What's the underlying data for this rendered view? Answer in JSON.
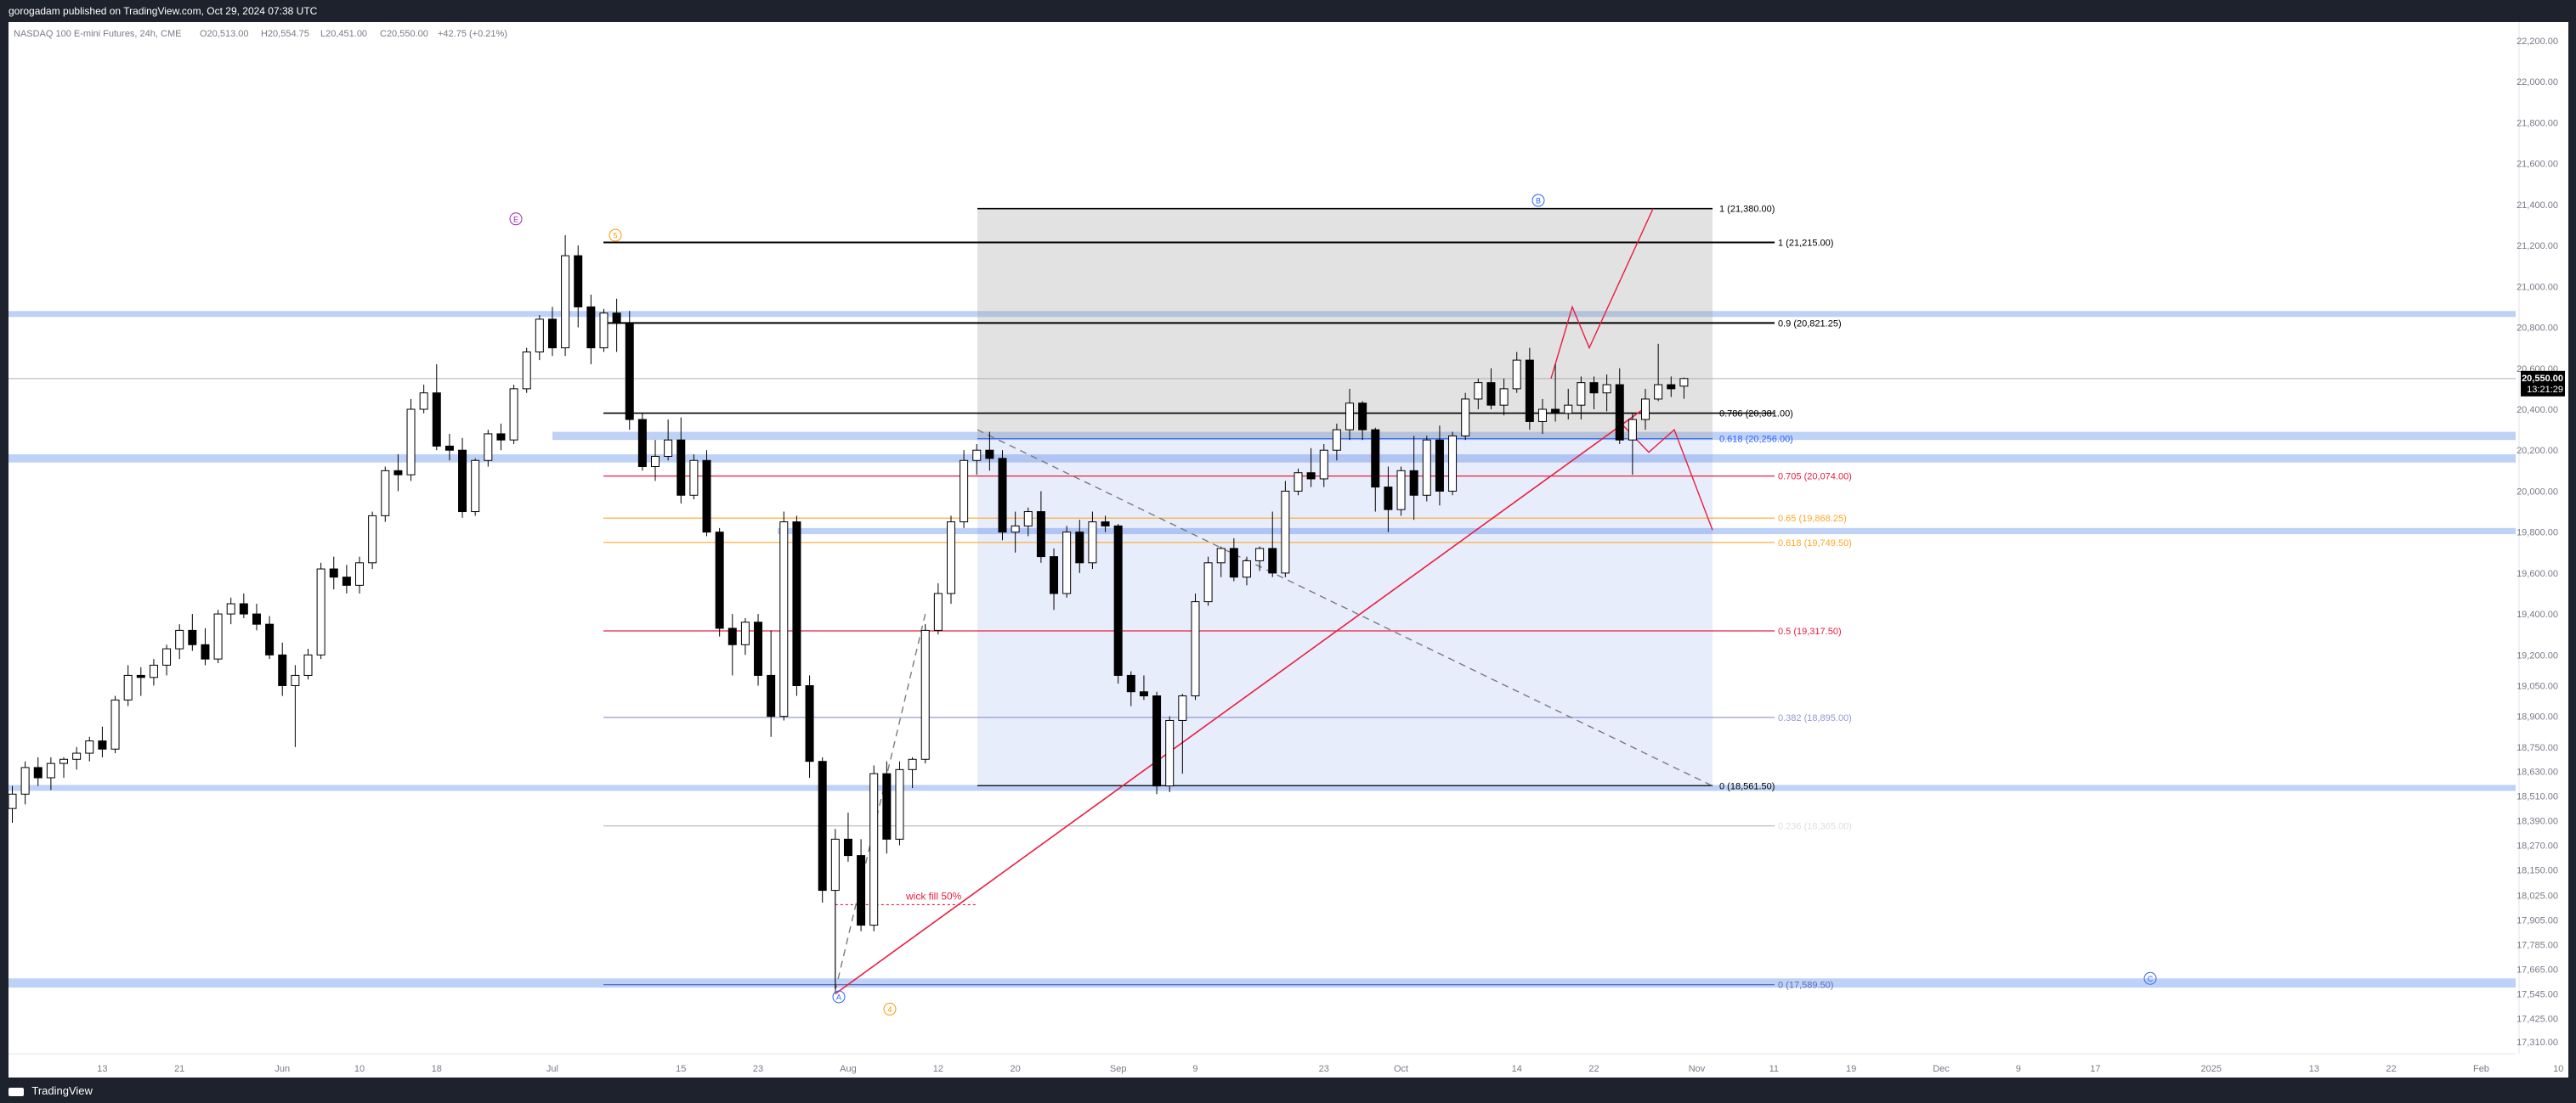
{
  "header": {
    "publish_line": "gorogadam published on TradingView.com, Oct 29, 2024 07:38 UTC"
  },
  "footer": {
    "brand": "TradingView"
  },
  "chart_data": {
    "type": "candlestick",
    "symbol_line": "NASDAQ 100 E-mini Futures, 24h, CME",
    "ohlc": {
      "o": "O20,513.00",
      "h": "H20,554.75",
      "l": "L20,451.00",
      "c": "C20,550.00",
      "chg": "+42.75 (+0.21%)"
    },
    "last_price": "20,550.00",
    "countdown": "13:21:29",
    "y_range": [
      17150,
      22300
    ],
    "price_ticks": [
      22200,
      22000,
      21800,
      21600,
      21400,
      21200,
      21000,
      20800,
      20600,
      20400,
      20200,
      20000,
      19800,
      19600,
      19400,
      19200,
      19050,
      18900,
      18750,
      18630,
      18510,
      18390,
      18270,
      18150,
      18025,
      17905,
      17785,
      17665,
      17545,
      17425,
      17310
    ],
    "price_tick_labels": [
      "22,200.00",
      "22,000.00",
      "21,800.00",
      "21,600.00",
      "21,400.00",
      "21,200.00",
      "21,000.00",
      "20,800.00",
      "20,600.00",
      "20,400.00",
      "20,200.00",
      "20,000.00",
      "19,800.00",
      "19,600.00",
      "19,400.00",
      "19,200.00",
      "19,050.00",
      "18,900.00",
      "18,750.00",
      "18,630.00",
      "18,510.00",
      "18,390.00",
      "18,270.00",
      "18,150.00",
      "18,025.00",
      "17,905.00",
      "17,785.00",
      "17,665.00",
      "17,545.00",
      "17,425.00",
      "17,310.00"
    ],
    "x_ticks": [
      {
        "label": "13",
        "i": 7
      },
      {
        "label": "21",
        "i": 13
      },
      {
        "label": "Jun",
        "i": 21
      },
      {
        "label": "10",
        "i": 27
      },
      {
        "label": "18",
        "i": 33
      },
      {
        "label": "Jul",
        "i": 42
      },
      {
        "label": "15",
        "i": 52
      },
      {
        "label": "23",
        "i": 58
      },
      {
        "label": "Aug",
        "i": 65
      },
      {
        "label": "12",
        "i": 72
      },
      {
        "label": "20",
        "i": 78
      },
      {
        "label": "Sep",
        "i": 86
      },
      {
        "label": "9",
        "i": 92
      },
      {
        "label": "23",
        "i": 102
      },
      {
        "label": "Oct",
        "i": 108
      },
      {
        "label": "14",
        "i": 117
      },
      {
        "label": "22",
        "i": 123
      },
      {
        "label": "Nov",
        "i": 131
      },
      {
        "label": "11",
        "i": 137
      },
      {
        "label": "19",
        "i": 143
      },
      {
        "label": "Dec",
        "i": 150
      },
      {
        "label": "9",
        "i": 156
      },
      {
        "label": "17",
        "i": 162
      },
      {
        "label": "2025",
        "i": 171
      },
      {
        "label": "13",
        "i": 179
      },
      {
        "label": "22",
        "i": 185
      },
      {
        "label": "Feb",
        "i": 192
      },
      {
        "label": "10",
        "i": 198
      }
    ],
    "candles": [
      [
        18450,
        18560,
        18380,
        18520
      ],
      [
        18520,
        18680,
        18470,
        18650
      ],
      [
        18650,
        18700,
        18560,
        18600
      ],
      [
        18600,
        18700,
        18540,
        18670
      ],
      [
        18670,
        18700,
        18600,
        18690
      ],
      [
        18690,
        18750,
        18640,
        18720
      ],
      [
        18720,
        18800,
        18680,
        18780
      ],
      [
        18780,
        18850,
        18700,
        18740
      ],
      [
        18740,
        19000,
        18720,
        18980
      ],
      [
        18980,
        19150,
        18950,
        19100
      ],
      [
        19100,
        19140,
        19000,
        19090
      ],
      [
        19090,
        19180,
        19050,
        19150
      ],
      [
        19150,
        19250,
        19100,
        19230
      ],
      [
        19230,
        19350,
        19180,
        19320
      ],
      [
        19320,
        19400,
        19220,
        19250
      ],
      [
        19250,
        19330,
        19150,
        19180
      ],
      [
        19180,
        19420,
        19160,
        19400
      ],
      [
        19400,
        19480,
        19350,
        19450
      ],
      [
        19450,
        19500,
        19380,
        19400
      ],
      [
        19400,
        19450,
        19320,
        19350
      ],
      [
        19350,
        19390,
        19180,
        19200
      ],
      [
        19200,
        19260,
        19000,
        19050
      ],
      [
        19050,
        19150,
        18750,
        19100
      ],
      [
        19100,
        19230,
        19080,
        19200
      ],
      [
        19200,
        19650,
        19180,
        19620
      ],
      [
        19620,
        19680,
        19520,
        19580
      ],
      [
        19580,
        19640,
        19500,
        19540
      ],
      [
        19540,
        19680,
        19500,
        19650
      ],
      [
        19650,
        19900,
        19620,
        19880
      ],
      [
        19880,
        20120,
        19850,
        20100
      ],
      [
        20100,
        20180,
        20000,
        20080
      ],
      [
        20080,
        20450,
        20050,
        20400
      ],
      [
        20400,
        20520,
        20380,
        20480
      ],
      [
        20480,
        20620,
        20200,
        20220
      ],
      [
        20220,
        20280,
        20150,
        20200
      ],
      [
        20200,
        20260,
        19870,
        19900
      ],
      [
        19900,
        20160,
        19880,
        20150
      ],
      [
        20150,
        20300,
        20120,
        20280
      ],
      [
        20280,
        20330,
        20200,
        20250
      ],
      [
        20250,
        20520,
        20230,
        20500
      ],
      [
        20500,
        20700,
        20480,
        20680
      ],
      [
        20680,
        20860,
        20640,
        20840
      ],
      [
        20840,
        20900,
        20660,
        20700
      ],
      [
        20700,
        21250,
        20660,
        21150
      ],
      [
        21150,
        21200,
        20800,
        20900
      ],
      [
        20900,
        20960,
        20620,
        20700
      ],
      [
        20700,
        20890,
        20680,
        20870
      ],
      [
        20870,
        20940,
        20680,
        20820
      ],
      [
        20820,
        20880,
        20300,
        20350
      ],
      [
        20350,
        20380,
        20100,
        20120
      ],
      [
        20120,
        20250,
        20050,
        20170
      ],
      [
        20170,
        20350,
        20150,
        20250
      ],
      [
        20250,
        20360,
        19940,
        19980
      ],
      [
        19980,
        20180,
        19960,
        20150
      ],
      [
        20150,
        20200,
        19780,
        19800
      ],
      [
        19800,
        19820,
        19290,
        19330
      ],
      [
        19330,
        19400,
        19100,
        19250
      ],
      [
        19250,
        19380,
        19200,
        19360
      ],
      [
        19360,
        19400,
        19050,
        19100
      ],
      [
        19100,
        19320,
        18800,
        18900
      ],
      [
        18900,
        19900,
        18880,
        19850
      ],
      [
        19850,
        19880,
        19000,
        19050
      ],
      [
        19050,
        19100,
        18600,
        18680
      ],
      [
        18680,
        18700,
        17990,
        18050
      ],
      [
        18050,
        18350,
        17570,
        18300
      ],
      [
        18300,
        18430,
        18190,
        18220
      ],
      [
        18220,
        18300,
        17850,
        17880
      ],
      [
        17880,
        18660,
        17850,
        18620
      ],
      [
        18620,
        18680,
        18230,
        18300
      ],
      [
        18300,
        18680,
        18270,
        18640
      ],
      [
        18640,
        18700,
        18550,
        18690
      ],
      [
        18690,
        19350,
        18670,
        19320
      ],
      [
        19320,
        19550,
        19300,
        19500
      ],
      [
        19500,
        19880,
        19450,
        19850
      ],
      [
        19850,
        20200,
        19820,
        20150
      ],
      [
        20150,
        20230,
        20080,
        20200
      ],
      [
        20200,
        20290,
        20100,
        20160
      ],
      [
        20160,
        20200,
        19760,
        19800
      ],
      [
        19800,
        19900,
        19700,
        19830
      ],
      [
        19830,
        19920,
        19780,
        19900
      ],
      [
        19900,
        20000,
        19650,
        19680
      ],
      [
        19680,
        19720,
        19420,
        19500
      ],
      [
        19500,
        19830,
        19480,
        19800
      ],
      [
        19800,
        19860,
        19600,
        19650
      ],
      [
        19650,
        19900,
        19620,
        19850
      ],
      [
        19850,
        19880,
        19800,
        19830
      ],
      [
        19830,
        19840,
        19060,
        19100
      ],
      [
        19100,
        19120,
        18950,
        19020
      ],
      [
        19020,
        19100,
        18980,
        19000
      ],
      [
        19000,
        19020,
        18520,
        18560
      ],
      [
        18560,
        18900,
        18530,
        18880
      ],
      [
        18880,
        19010,
        18620,
        19000
      ],
      [
        19000,
        19500,
        18980,
        19460
      ],
      [
        19460,
        19680,
        19440,
        19650
      ],
      [
        19650,
        19730,
        19580,
        19720
      ],
      [
        19720,
        19770,
        19560,
        19580
      ],
      [
        19580,
        19680,
        19540,
        19660
      ],
      [
        19660,
        19730,
        19610,
        19720
      ],
      [
        19720,
        19900,
        19580,
        19600
      ],
      [
        19600,
        20050,
        19580,
        20000
      ],
      [
        20000,
        20110,
        19980,
        20090
      ],
      [
        20090,
        20210,
        20020,
        20060
      ],
      [
        20060,
        20230,
        20020,
        20200
      ],
      [
        20200,
        20330,
        20150,
        20300
      ],
      [
        20300,
        20500,
        20250,
        20430
      ],
      [
        20430,
        20440,
        20250,
        20300
      ],
      [
        20300,
        20310,
        19900,
        20020
      ],
      [
        20020,
        20120,
        19800,
        19910
      ],
      [
        19910,
        20120,
        19880,
        20100
      ],
      [
        20100,
        20270,
        19860,
        19980
      ],
      [
        19980,
        20270,
        19950,
        20250
      ],
      [
        20250,
        20320,
        19930,
        20000
      ],
      [
        20000,
        20290,
        19980,
        20270
      ],
      [
        20270,
        20480,
        20250,
        20450
      ],
      [
        20450,
        20550,
        20400,
        20530
      ],
      [
        20530,
        20600,
        20400,
        20420
      ],
      [
        20420,
        20550,
        20370,
        20500
      ],
      [
        20500,
        20680,
        20480,
        20640
      ],
      [
        20640,
        20700,
        20300,
        20340
      ],
      [
        20340,
        20450,
        20280,
        20400
      ],
      [
        20400,
        20620,
        20340,
        20380
      ],
      [
        20380,
        20500,
        20350,
        20420
      ],
      [
        20420,
        20560,
        20350,
        20530
      ],
      [
        20530,
        20560,
        20400,
        20480
      ],
      [
        20480,
        20570,
        20390,
        20520
      ],
      [
        20520,
        20600,
        20230,
        20250
      ],
      [
        20250,
        20380,
        20080,
        20350
      ],
      [
        20350,
        20500,
        20300,
        20450
      ],
      [
        20450,
        20720,
        20440,
        20520
      ],
      [
        20520,
        20560,
        20460,
        20500
      ],
      [
        20513,
        20555,
        20451,
        20550
      ]
    ],
    "fib_grid_1": {
      "labels": [
        "1 (21,380.00)",
        "0.786 (20,381.00)",
        "0.618 (20,256.00)",
        "0 (18,561.50)"
      ],
      "values": [
        21380,
        20381,
        20256,
        18561.5
      ]
    },
    "fib_grid_2": {
      "labels": [
        "1 (21,215.00)",
        "0.9 (20,821.25)",
        "0.705 (20,074.00)",
        "0.65 (19,868.25)",
        "0.618 (19,749.50)",
        "0.5 (19,317.50)",
        "0.382 (18,895.00)",
        "0.236 (18,365.00)",
        "0 (17,589.50)"
      ],
      "values": [
        21215,
        20821.25,
        20074,
        19868.25,
        19749.5,
        19317.5,
        18895,
        18365,
        17589.5
      ]
    },
    "wave_labels": [
      "E",
      "5",
      "B",
      "A",
      "4",
      "C"
    ],
    "annotation": "wick fill 50%",
    "colors": {
      "up_fill": "#ffffff",
      "down_fill": "#000000",
      "wick": "#000000",
      "fib_black": "#000000",
      "fib_blue": "#2962ff",
      "fib_red": "#e91e3f",
      "fib_orange": "#ffa726",
      "fib_purple": "#9598d6",
      "zone_blue": "#b3c9f5",
      "trend_red": "#e91e3f"
    }
  }
}
